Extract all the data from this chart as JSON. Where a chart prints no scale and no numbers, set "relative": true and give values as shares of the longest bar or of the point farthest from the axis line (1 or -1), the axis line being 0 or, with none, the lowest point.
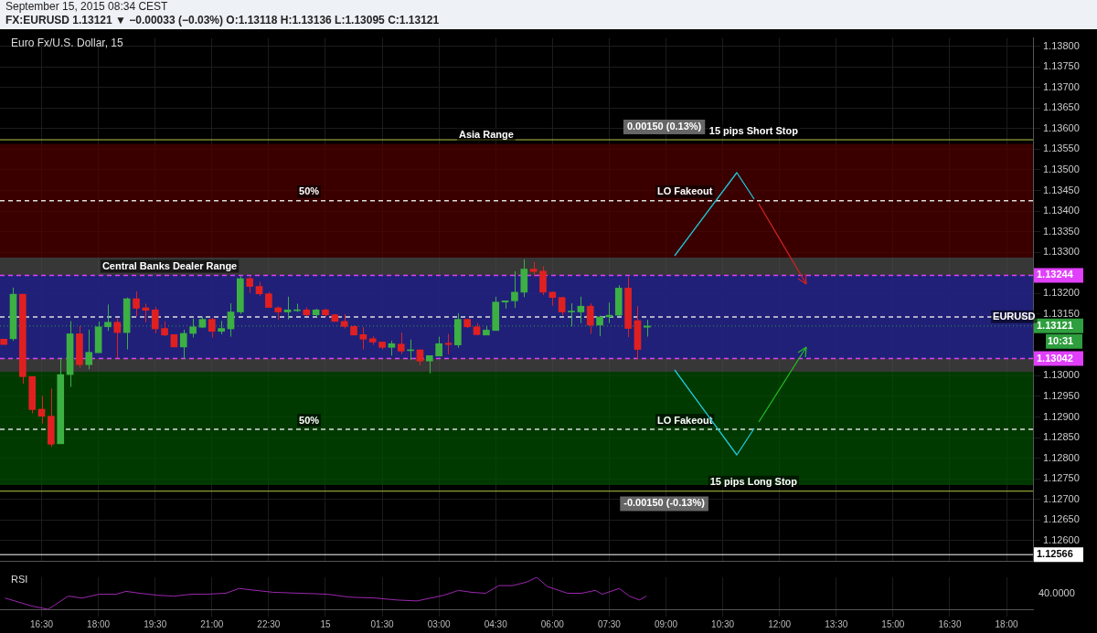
{
  "chart_data": [
    {
      "type": "candlestick",
      "title": "FX:EURUSD 1.13121 ▼ −0.00033 (−0.03%) O:1.13118 H:1.13136 L:1.13095 C:1.13121",
      "subtitle": "Euro Fx/U.S. Dollar, 15",
      "x": [
        "2015-09-14T15:30",
        "2015-09-14T15:45",
        "2015-09-14T16:00",
        "2015-09-14T16:15",
        "2015-09-14T16:30",
        "2015-09-14T16:45",
        "2015-09-14T17:00",
        "2015-09-14T17:15",
        "2015-09-14T17:30",
        "2015-09-14T17:45",
        "2015-09-14T18:00",
        "2015-09-14T18:15",
        "2015-09-14T18:30",
        "2015-09-14T18:45",
        "2015-09-14T19:00",
        "2015-09-14T19:15",
        "2015-09-14T19:30",
        "2015-09-14T19:45",
        "2015-09-14T20:00",
        "2015-09-14T20:15",
        "2015-09-14T20:30",
        "2015-09-14T20:45",
        "2015-09-14T21:00",
        "2015-09-14T21:15",
        "2015-09-14T21:30",
        "2015-09-14T21:45",
        "2015-09-14T22:00",
        "2015-09-14T22:15",
        "2015-09-14T22:30",
        "2015-09-14T22:45",
        "2015-09-14T23:00",
        "2015-09-14T23:15",
        "2015-09-14T23:30",
        "2015-09-14T23:45",
        "2015-09-15T00:00",
        "2015-09-15T00:15",
        "2015-09-15T00:30",
        "2015-09-15T00:45",
        "2015-09-15T01:00",
        "2015-09-15T01:15",
        "2015-09-15T01:30",
        "2015-09-15T01:45",
        "2015-09-15T02:00",
        "2015-09-15T02:15",
        "2015-09-15T02:30",
        "2015-09-15T02:45",
        "2015-09-15T03:00",
        "2015-09-15T03:15",
        "2015-09-15T03:30",
        "2015-09-15T03:45",
        "2015-09-15T04:00",
        "2015-09-15T04:15",
        "2015-09-15T04:30",
        "2015-09-15T04:45",
        "2015-09-15T05:00",
        "2015-09-15T05:15",
        "2015-09-15T05:30",
        "2015-09-15T05:45",
        "2015-09-15T06:00",
        "2015-09-15T06:15",
        "2015-09-15T06:30",
        "2015-09-15T06:45",
        "2015-09-15T07:00",
        "2015-09-15T07:15",
        "2015-09-15T07:30",
        "2015-09-15T07:45",
        "2015-09-15T08:00",
        "2015-09-15T08:15",
        "2015-09-15T08:30"
      ],
      "ohlc": [
        [
          1.13089,
          1.13089,
          1.13076,
          1.13076
        ],
        [
          1.1309,
          1.13214,
          1.13085,
          1.13198
        ],
        [
          1.13198,
          1.13198,
          1.12981,
          1.12998
        ],
        [
          1.12998,
          1.12998,
          1.12909,
          1.12918
        ],
        [
          1.12919,
          1.12951,
          1.12884,
          1.12902
        ],
        [
          1.12902,
          1.12969,
          1.12828,
          1.12834
        ],
        [
          1.12835,
          1.13044,
          1.12835,
          1.13003
        ],
        [
          1.13003,
          1.13133,
          1.12973,
          1.13102
        ],
        [
          1.13102,
          1.13121,
          1.1302,
          1.13027
        ],
        [
          1.13027,
          1.13112,
          1.13016,
          1.13057
        ],
        [
          1.13056,
          1.13132,
          1.13056,
          1.13119
        ],
        [
          1.13119,
          1.13173,
          1.13109,
          1.1313
        ],
        [
          1.1313,
          1.13139,
          1.13043,
          1.13105
        ],
        [
          1.13105,
          1.1319,
          1.13064,
          1.13187
        ],
        [
          1.13187,
          1.13205,
          1.13144,
          1.13164
        ],
        [
          1.13165,
          1.13175,
          1.1313,
          1.13159
        ],
        [
          1.1316,
          1.13167,
          1.13103,
          1.13114
        ],
        [
          1.13115,
          1.13132,
          1.13096,
          1.13099
        ],
        [
          1.131,
          1.131,
          1.1307,
          1.1307
        ],
        [
          1.1307,
          1.13112,
          1.13041,
          1.13103
        ],
        [
          1.13103,
          1.13139,
          1.13093,
          1.13119
        ],
        [
          1.13118,
          1.13144,
          1.13116,
          1.13137
        ],
        [
          1.13137,
          1.13141,
          1.13093,
          1.13108
        ],
        [
          1.13108,
          1.13133,
          1.13101,
          1.13115
        ],
        [
          1.13114,
          1.13176,
          1.13095,
          1.13155
        ],
        [
          1.13155,
          1.13242,
          1.1315,
          1.13236
        ],
        [
          1.13236,
          1.13242,
          1.13201,
          1.13217
        ],
        [
          1.13217,
          1.13228,
          1.13194,
          1.13199
        ],
        [
          1.13199,
          1.13203,
          1.13166,
          1.13166
        ],
        [
          1.13165,
          1.13169,
          1.13136,
          1.13155
        ],
        [
          1.13155,
          1.13192,
          1.13137,
          1.1316
        ],
        [
          1.13158,
          1.13175,
          1.13155,
          1.1316
        ],
        [
          1.1316,
          1.13166,
          1.13145,
          1.13148
        ],
        [
          1.13148,
          1.13163,
          1.13143,
          1.1316
        ],
        [
          1.1316,
          1.13163,
          1.13143,
          1.13148
        ],
        [
          1.13148,
          1.1315,
          1.13132,
          1.13132
        ],
        [
          1.13132,
          1.1315,
          1.13115,
          1.1312
        ],
        [
          1.1312,
          1.13122,
          1.13099,
          1.13099
        ],
        [
          1.131,
          1.13118,
          1.13064,
          1.13089
        ],
        [
          1.1309,
          1.13096,
          1.13075,
          1.13082
        ],
        [
          1.13082,
          1.13083,
          1.13064,
          1.13069
        ],
        [
          1.13069,
          1.13085,
          1.13049,
          1.13078
        ],
        [
          1.13077,
          1.13105,
          1.13053,
          1.1306
        ],
        [
          1.13061,
          1.13088,
          1.13038,
          1.13063
        ],
        [
          1.13063,
          1.13063,
          1.13025,
          1.13036
        ],
        [
          1.13036,
          1.13049,
          1.13006,
          1.13049
        ],
        [
          1.13048,
          1.13095,
          1.13048,
          1.13078
        ],
        [
          1.13079,
          1.13102,
          1.13052,
          1.13076
        ],
        [
          1.13075,
          1.13152,
          1.13068,
          1.13137
        ],
        [
          1.13137,
          1.13139,
          1.13116,
          1.13119
        ],
        [
          1.13119,
          1.13128,
          1.13099,
          1.131
        ],
        [
          1.13099,
          1.13121,
          1.13099,
          1.13111
        ],
        [
          1.1311,
          1.13192,
          1.1311,
          1.13179
        ],
        [
          1.13179,
          1.13182,
          1.13163,
          1.13182
        ],
        [
          1.13182,
          1.13254,
          1.13165,
          1.13203
        ],
        [
          1.13203,
          1.13283,
          1.13191,
          1.13259
        ],
        [
          1.13259,
          1.13276,
          1.13241,
          1.13253
        ],
        [
          1.13254,
          1.13266,
          1.13196,
          1.13203
        ],
        [
          1.13203,
          1.13205,
          1.1317,
          1.1319
        ],
        [
          1.1319,
          1.13192,
          1.13147,
          1.13155
        ],
        [
          1.13155,
          1.13176,
          1.1312,
          1.13156
        ],
        [
          1.13155,
          1.13192,
          1.13128,
          1.13169
        ],
        [
          1.13169,
          1.13176,
          1.13102,
          1.13123
        ],
        [
          1.13123,
          1.13146,
          1.13096,
          1.13143
        ],
        [
          1.13143,
          1.13178,
          1.13128,
          1.13147
        ],
        [
          1.13147,
          1.1322,
          1.13146,
          1.13213
        ],
        [
          1.13213,
          1.1324,
          1.13094,
          1.13115
        ],
        [
          1.13134,
          1.13169,
          1.13041,
          1.13064
        ],
        [
          1.13118,
          1.13136,
          1.13095,
          1.13121
        ]
      ],
      "colors": [
        "#e02020",
        "#3cb043",
        "#e02020",
        "#e02020",
        "#e02020",
        "#e02020",
        "#3cb043",
        "#3cb043",
        "#e02020",
        "#3cb043",
        "#3cb043",
        "#3cb043",
        "#e02020",
        "#3cb043",
        "#e02020",
        "#e02020",
        "#e02020",
        "#e02020",
        "#e02020",
        "#3cb043",
        "#3cb043",
        "#3cb043",
        "#e02020",
        "#3cb043",
        "#3cb043",
        "#3cb043",
        "#e02020",
        "#e02020",
        "#e02020",
        "#e02020",
        "#3cb043",
        "#3cb043",
        "#e02020",
        "#3cb043",
        "#e02020",
        "#e02020",
        "#e02020",
        "#e02020",
        "#e02020",
        "#e02020",
        "#e02020",
        "#3cb043",
        "#e02020",
        "#3cb043",
        "#e02020",
        "#3cb043",
        "#3cb043",
        "#e02020",
        "#3cb043",
        "#e02020",
        "#e02020",
        "#3cb043",
        "#3cb043",
        "#3cb043",
        "#3cb043",
        "#3cb043",
        "#e02020",
        "#e02020",
        "#e02020",
        "#e02020",
        "#3cb043",
        "#3cb043",
        "#e02020",
        "#3cb043",
        "#3cb043",
        "#3cb043",
        "#e02020",
        "#e02020",
        "#3cb043"
      ],
      "xlim": [
        "2015-09-14T15:24",
        "2015-09-15T18:42"
      ],
      "xticks": [
        {
          "value": "2015-09-14T16:30",
          "label": null
        },
        {
          "value": "2015-09-14T18:00",
          "label": null
        },
        {
          "value": "2015-09-14T19:30",
          "label": null
        },
        {
          "value": "2015-09-14T21:00",
          "label": null
        },
        {
          "value": "2015-09-14T22:30",
          "label": null
        },
        {
          "value": "2015-09-15T00:00",
          "label": null
        },
        {
          "value": "2015-09-15T01:30",
          "label": null
        },
        {
          "value": "2015-09-15T03:00",
          "label": null
        },
        {
          "value": "2015-09-15T04:30",
          "label": null
        },
        {
          "value": "2015-09-15T06:00",
          "label": null
        },
        {
          "value": "2015-09-15T07:30",
          "label": null
        },
        {
          "value": "2015-09-15T09:00",
          "label": null
        },
        {
          "value": "2015-09-15T10:30",
          "label": null
        },
        {
          "value": "2015-09-15T12:00",
          "label": null
        },
        {
          "value": "2015-09-15T13:30",
          "label": null
        },
        {
          "value": "2015-09-15T15:00",
          "label": null
        },
        {
          "value": "2015-09-15T16:30",
          "label": null
        },
        {
          "value": "2015-09-15T18:00",
          "label": null
        }
      ],
      "ylim": [
        1.1255,
        1.1382
      ],
      "yticks": [
        {
          "value": 1.126,
          "label": "1.12600"
        },
        {
          "value": 1.1265,
          "label": "1.12650"
        },
        {
          "value": 1.127,
          "label": "1.12700"
        },
        {
          "value": 1.1275,
          "label": "1.12750"
        },
        {
          "value": 1.128,
          "label": "1.12800"
        },
        {
          "value": 1.1285,
          "label": "1.12850"
        },
        {
          "value": 1.129,
          "label": "1.12900"
        },
        {
          "value": 1.1295,
          "label": "1.12950"
        },
        {
          "value": 1.13,
          "label": "1.13000"
        },
        {
          "value": 1.1315,
          "label": "1.13150"
        },
        {
          "value": 1.132,
          "label": "1.13200"
        },
        {
          "value": 1.133,
          "label": "1.13300"
        },
        {
          "value": 1.1335,
          "label": "1.13350"
        },
        {
          "value": 1.134,
          "label": "1.13400"
        },
        {
          "value": 1.1345,
          "label": "1.13450"
        },
        {
          "value": 1.135,
          "label": "1.13500"
        },
        {
          "value": 1.1355,
          "label": "1.13550"
        },
        {
          "value": 1.136,
          "label": "1.13600"
        },
        {
          "value": 1.1365,
          "label": "1.13650"
        },
        {
          "value": 1.137,
          "label": "1.13700"
        },
        {
          "value": 1.1375,
          "label": "1.13750"
        },
        {
          "value": 1.138,
          "label": "1.13800"
        }
      ],
      "tick_labels": "y",
      "grid": true,
      "legend": false,
      "bands": [
        {
          "axis": "y",
          "from": 1.13287,
          "to": 1.13563,
          "color": "#4d0000"
        },
        {
          "axis": "y",
          "from": 1.1301,
          "to": 1.13287,
          "color": "#4a4a4a"
        },
        {
          "axis": "y",
          "from": 1.12735,
          "to": 1.1301,
          "color": "#004d00"
        },
        {
          "axis": "y",
          "from": 1.13042,
          "to": 1.13244,
          "color": "#1a1a90"
        }
      ],
      "ref_lines": [
        {
          "axis": "y",
          "value": 1.13425,
          "label": null,
          "color": "#dddddd",
          "line_style": "dashed"
        },
        {
          "axis": "y",
          "value": 1.13143,
          "label": null,
          "color": "#dddddd",
          "line_style": "dashed"
        },
        {
          "axis": "y",
          "value": 1.1287,
          "label": null,
          "color": "#dddddd",
          "line_style": "dashed"
        },
        {
          "axis": "y",
          "value": 1.13573,
          "label": null,
          "color": "#b5c842",
          "line_style": "solid"
        },
        {
          "axis": "y",
          "value": 1.1272,
          "label": null,
          "color": "#b5c842",
          "line_style": "solid"
        },
        {
          "axis": "y",
          "value": 1.13244,
          "label": "1.13244",
          "color": "#e040fb",
          "line_style": "dashed"
        },
        {
          "axis": "y",
          "value": 1.13042,
          "label": "1.13042",
          "color": "#e040fb",
          "line_style": "dashed"
        },
        {
          "axis": "y",
          "value": 1.13121,
          "label": "1.13121",
          "color": "#2e9e3e",
          "line_style": "dotted"
        },
        {
          "axis": "y",
          "value": 1.12566,
          "label": "1.12566",
          "color": "#ffffff",
          "line_style": "solid"
        }
      ],
      "annotations": [
        "September 15, 2015 08:34 CEST",
        "10:31",
        "0.00150 (0.13%)",
        "-0.00150 (-0.13%)",
        {
          "text": "Central Banks Dealer Range",
          "x": "2015-09-14T19:53",
          "y": 1.13244
        },
        {
          "text": "Asia Range",
          "x": "2015-09-15T04:15",
          "y": 1.13563
        },
        {
          "text": "50%",
          "x": "2015-09-14T23:34",
          "y": 1.13425
        },
        {
          "text": "50%",
          "x": "2015-09-14T23:34",
          "y": 1.1287
        },
        {
          "text": "LO Fakeout",
          "x": "2015-09-15T09:30",
          "y": 1.13425
        },
        {
          "text": "LO Fakeout",
          "x": "2015-09-15T09:30",
          "y": 1.1287
        },
        {
          "text": "15 pips Short Stop",
          "x": "2015-09-15T11:19",
          "y": 1.13573
        },
        {
          "text": "15 pips Long Stop",
          "x": "2015-09-15T11:19",
          "y": 1.1272
        },
        {
          "text": "EURUSD",
          "x": "2015-09-15T18:12",
          "y": 1.13121
        }
      ]
    },
    {
      "type": "line",
      "title": "RSI",
      "relative": true,
      "color": "#9c27b0",
      "tick_labels": "x",
      "grid": true,
      "legend": false,
      "marker": "none",
      "x": [
        "2015-09-14T15:32",
        "2015-09-14T15:56",
        "2015-09-14T16:17",
        "2015-09-14T16:40",
        "2015-09-14T16:50",
        "2015-09-14T17:12",
        "2015-09-14T17:34",
        "2015-09-14T18:01",
        "2015-09-14T18:28",
        "2015-09-14T18:44",
        "2015-09-14T19:06",
        "2015-09-14T19:33",
        "2015-09-14T20:00",
        "2015-09-14T20:27",
        "2015-09-14T20:49",
        "2015-09-14T21:22",
        "2015-09-14T21:43",
        "2015-09-14T22:10",
        "2015-09-14T22:37",
        "2015-09-14T23:21",
        "2015-09-15T00:04",
        "2015-09-15T00:37",
        "2015-09-15T01:20",
        "2015-09-15T01:53",
        "2015-09-15T02:25",
        "2015-09-15T02:47",
        "2015-09-15T03:08",
        "2015-09-15T03:31",
        "2015-09-15T03:52",
        "2015-09-15T04:14",
        "2015-09-15T04:35",
        "2015-09-15T04:57",
        "2015-09-15T05:19",
        "2015-09-15T05:35",
        "2015-09-15T05:52",
        "2015-09-15T06:24",
        "2015-09-15T06:46",
        "2015-09-15T07:08",
        "2015-09-15T07:19",
        "2015-09-15T07:46",
        "2015-09-15T08:02",
        "2015-09-15T08:18",
        "2015-09-15T08:29"
      ],
      "values": [
        0.35,
        0.21,
        0.09,
        0,
        0.12,
        0.41,
        0.35,
        0.47,
        0.47,
        0.56,
        0.5,
        0.44,
        0.41,
        0.47,
        0.47,
        0.5,
        0.65,
        0.59,
        0.53,
        0.5,
        0.47,
        0.38,
        0.35,
        0.29,
        0.26,
        0.35,
        0.44,
        0.59,
        0.53,
        0.5,
        0.74,
        0.74,
        0.85,
        1,
        0.71,
        0.5,
        0.5,
        0.59,
        0.47,
        0.65,
        0.41,
        0.29,
        0.41
      ],
      "xlim": [
        "2015-09-14T15:24",
        "2015-09-15T18:42"
      ],
      "xticks": [
        {
          "value": "2015-09-14T16:30",
          "label": "16:30"
        },
        {
          "value": "2015-09-14T18:00",
          "label": "18:00"
        },
        {
          "value": "2015-09-14T19:30",
          "label": "19:30"
        },
        {
          "value": "2015-09-14T21:00",
          "label": "21:00"
        },
        {
          "value": "2015-09-14T22:30",
          "label": "22:30"
        },
        {
          "value": "2015-09-15T00:00",
          "label": "15"
        },
        {
          "value": "2015-09-15T01:30",
          "label": "01:30"
        },
        {
          "value": "2015-09-15T03:00",
          "label": "03:00"
        },
        {
          "value": "2015-09-15T04:30",
          "label": "04:30"
        },
        {
          "value": "2015-09-15T06:00",
          "label": "06:00"
        },
        {
          "value": "2015-09-15T07:30",
          "label": "07:30"
        },
        {
          "value": "2015-09-15T09:00",
          "label": "09:00"
        },
        {
          "value": "2015-09-15T10:30",
          "label": "10:30"
        },
        {
          "value": "2015-09-15T12:00",
          "label": "12:00"
        },
        {
          "value": "2015-09-15T13:30",
          "label": "13:30"
        },
        {
          "value": "2015-09-15T15:00",
          "label": "15:00"
        },
        {
          "value": "2015-09-15T16:30",
          "label": "16:30"
        },
        {
          "value": "2015-09-15T18:00",
          "label": "18:00"
        }
      ],
      "annotations": [
        "40.0000"
      ]
    }
  ]
}
